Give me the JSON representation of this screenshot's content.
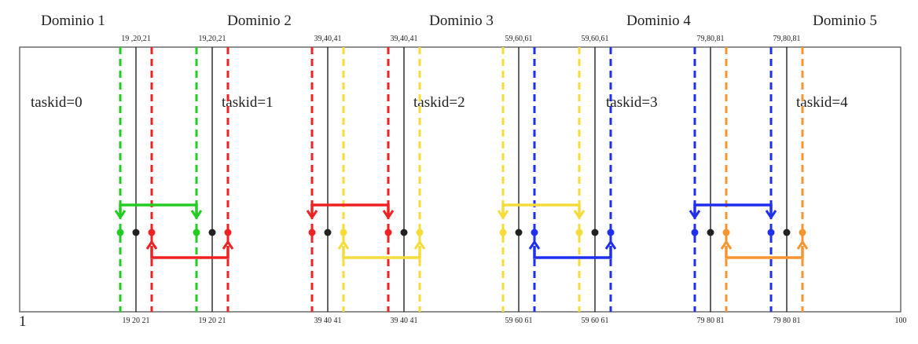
{
  "colors": {
    "frame": "#555555",
    "boundary": "#222222",
    "green": "#22cc22",
    "red": "#ee2222",
    "yellow": "#f5dc3a",
    "blue": "#1f2fee",
    "orange": "#f59530"
  },
  "domains": [
    {
      "title": "Dominio 1",
      "task": "taskid=0"
    },
    {
      "title": "Dominio 2",
      "task": "taskid=1"
    },
    {
      "title": "Dominio 3",
      "task": "taskid=2"
    },
    {
      "title": "Dominio 4",
      "task": "taskid=3"
    },
    {
      "title": "Dominio 5",
      "task": "taskid=4"
    }
  ],
  "axis": {
    "start": "1",
    "end": "100"
  },
  "boundaries": [
    {
      "top_left": "19 ,20,21",
      "top_right": "19,20,21",
      "bottom_left": "19 20 21",
      "bottom_right": "19 20 21",
      "send_left_color": "green",
      "send_right_color": "red"
    },
    {
      "top_left": "39,40,41",
      "top_right": "39,40,41",
      "bottom_left": "39 40 41",
      "bottom_right": "39 40 41",
      "send_left_color": "red",
      "send_right_color": "yellow"
    },
    {
      "top_left": "59,60,61",
      "top_right": "59,60,61",
      "bottom_left": "59 60 61",
      "bottom_right": "59 60 61",
      "send_left_color": "yellow",
      "send_right_color": "blue"
    },
    {
      "top_left": "79,80,81",
      "top_right": "79,80,81",
      "bottom_left": "79 80 81",
      "bottom_right": "79 80 81",
      "send_left_color": "blue",
      "send_right_color": "orange"
    }
  ]
}
